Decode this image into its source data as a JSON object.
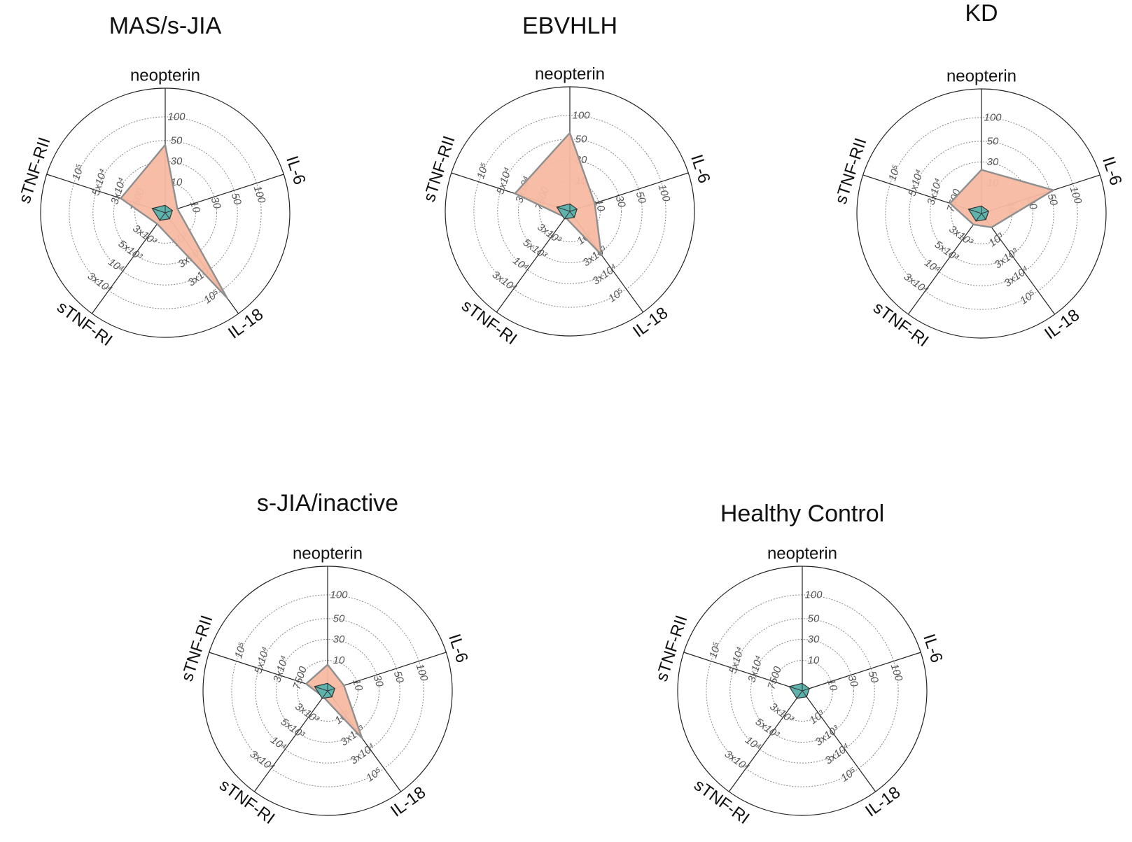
{
  "chart_data": [
    {
      "type": "radar",
      "title": "MAS/s-JIA",
      "axes": [
        "neopterin",
        "IL-6",
        "IL-18",
        "sTNF-RI",
        "sTNF-RII"
      ],
      "ticks": [
        [
          "10",
          "30",
          "50",
          "100"
        ],
        [
          "10",
          "30",
          "50",
          "100"
        ],
        [
          "10³",
          "3x10³",
          "3x10⁴",
          "10⁵"
        ],
        [
          "3x10³",
          "5x10³",
          "10⁴",
          "3x10⁴"
        ],
        [
          "7500",
          "3x10⁴",
          "5x10⁴",
          "10⁵"
        ]
      ],
      "series": [
        {
          "values": [
            45,
            4,
            160000,
            2000,
            22000
          ]
        },
        {
          "values": [
            3,
            0.6,
            200,
            1800,
            2500
          ]
        }
      ]
    },
    {
      "type": "radar",
      "title": "EBVHLH",
      "axes": [
        "neopterin",
        "IL-6",
        "IL-18",
        "sTNF-RI",
        "sTNF-RII"
      ],
      "ticks": [
        [
          "10",
          "30",
          "50",
          "100"
        ],
        [
          "10",
          "30",
          "50",
          "100"
        ],
        [
          "10³",
          "3x10³",
          "3x10⁴",
          "10⁵"
        ],
        [
          "3x10³",
          "5x10³",
          "10⁴",
          "3x10⁴"
        ],
        [
          "7500",
          "3x10⁴",
          "5x10⁴",
          "10⁵"
        ]
      ],
      "series": [
        {
          "values": [
            60,
            8,
            3800,
            1500,
            35000
          ]
        },
        {
          "values": [
            3,
            0.6,
            200,
            1800,
            2500
          ]
        }
      ]
    },
    {
      "type": "radar",
      "title": "KD",
      "axes": [
        "neopterin",
        "IL-6",
        "IL-18",
        "sTNF-RI",
        "sTNF-RII"
      ],
      "ticks": [
        [
          "10",
          "30",
          "50",
          "100"
        ],
        [
          "10",
          "30",
          "50",
          "100"
        ],
        [
          "10³",
          "3x10³",
          "3x10⁴",
          "10⁵"
        ],
        [
          "3x10³",
          "5x10³",
          "10⁴",
          "3x10⁴"
        ],
        [
          "7500",
          "3x10⁴",
          "5x10⁴",
          "10⁵"
        ]
      ],
      "series": [
        {
          "values": [
            20,
            55,
            500,
            2000,
            9000
          ]
        },
        {
          "values": [
            3,
            0.6,
            200,
            1800,
            2500
          ]
        }
      ]
    },
    {
      "type": "radar",
      "title": "s-JIA/inactive",
      "axes": [
        "neopterin",
        "IL-6",
        "IL-18",
        "sTNF-RI",
        "sTNF-RII"
      ],
      "ticks": [
        [
          "10",
          "30",
          "50",
          "100"
        ],
        [
          "10",
          "30",
          "50",
          "100"
        ],
        [
          "10³",
          "3x10³",
          "3x10⁴",
          "10⁵"
        ],
        [
          "3x10³",
          "5x10³",
          "10⁴",
          "3x10⁴"
        ],
        [
          "7500",
          "3x10⁴",
          "5x10⁴",
          "10⁵"
        ]
      ],
      "series": [
        {
          "values": [
            8,
            5,
            6500,
            1500,
            4500
          ]
        },
        {
          "values": [
            3,
            0.6,
            200,
            1800,
            2500
          ]
        }
      ]
    },
    {
      "type": "radar",
      "title": "Healthy Control",
      "axes": [
        "neopterin",
        "IL-6",
        "IL-18",
        "sTNF-RI",
        "sTNF-RII"
      ],
      "ticks": [
        [
          "10",
          "30",
          "50",
          "100"
        ],
        [
          "10",
          "30",
          "50",
          "100"
        ],
        [
          "10³",
          "3x10³",
          "3x10⁴",
          "10⁵"
        ],
        [
          "3x10³",
          "5x10³",
          "10⁴",
          "3x10⁴"
        ],
        [
          "7500",
          "3x10⁴",
          "5x10⁴",
          "10⁵"
        ]
      ],
      "series": [
        {
          "values": [
            3,
            0.6,
            200,
            1800,
            2500
          ]
        }
      ]
    }
  ],
  "colors": {
    "patient_fill": "#f7b9a1",
    "patient_stroke": "#8f8f8f",
    "healthy_fill": "#5fb3ad",
    "healthy_stroke": "#333333"
  }
}
